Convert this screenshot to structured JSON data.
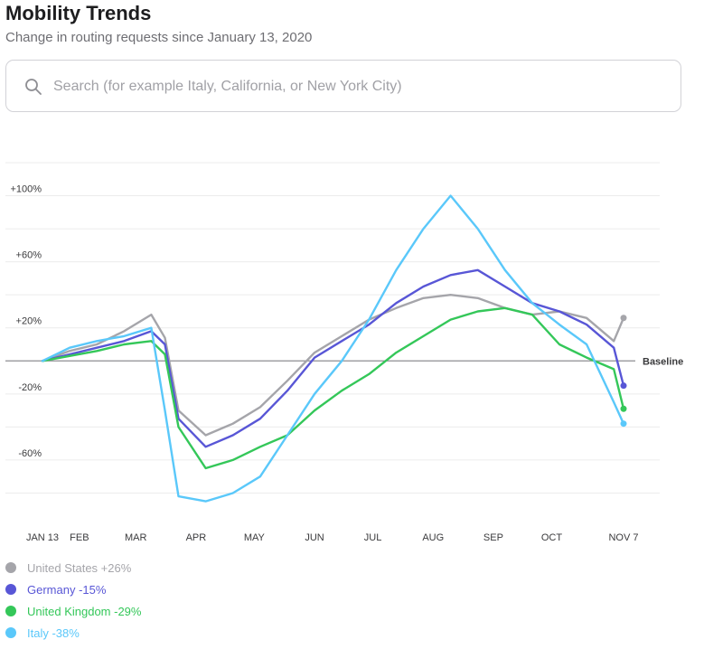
{
  "header": {
    "title": "Mobility Trends",
    "subtitle": "Change in routing requests since January 13, 2020"
  },
  "search": {
    "placeholder": "Search (for example Italy, California, or New York City)",
    "value": "",
    "icon": "search-icon"
  },
  "chart_data": {
    "type": "line",
    "title": "",
    "xlabel": "",
    "ylabel": "",
    "baseline_label": "Baseline",
    "x_ticks": [
      "JAN 13",
      "FEB",
      "MAR",
      "APR",
      "MAY",
      "JUN",
      "JUL",
      "AUG",
      "SEP",
      "OCT",
      "NOV 7"
    ],
    "y_ticks": [
      "+100%",
      "+60%",
      "+20%",
      "-20%",
      "-60%"
    ],
    "y_tick_values": [
      100,
      60,
      20,
      -20,
      -60
    ],
    "ylim": [
      -100,
      120
    ],
    "grid": true,
    "x_dates": [
      "2020-01-13",
      "2020-01-27",
      "2020-02-10",
      "2020-02-24",
      "2020-03-09",
      "2020-03-16",
      "2020-03-23",
      "2020-04-06",
      "2020-04-20",
      "2020-05-04",
      "2020-05-18",
      "2020-06-01",
      "2020-06-15",
      "2020-06-29",
      "2020-07-13",
      "2020-07-27",
      "2020-08-10",
      "2020-08-24",
      "2020-09-07",
      "2020-09-21",
      "2020-10-05",
      "2020-10-19",
      "2020-11-02",
      "2020-11-07"
    ],
    "series": [
      {
        "name": "United States",
        "change_label": "+26%",
        "color": "#a5a5aa",
        "values": [
          0,
          6,
          10,
          18,
          28,
          14,
          -30,
          -45,
          -38,
          -28,
          -12,
          5,
          15,
          25,
          32,
          38,
          40,
          38,
          32,
          28,
          30,
          26,
          12,
          26
        ]
      },
      {
        "name": "Germany",
        "change_label": "-15%",
        "color": "#5856d6",
        "values": [
          0,
          4,
          8,
          12,
          18,
          10,
          -35,
          -52,
          -45,
          -35,
          -18,
          2,
          12,
          22,
          35,
          45,
          52,
          55,
          45,
          35,
          30,
          22,
          8,
          -15
        ]
      },
      {
        "name": "United Kingdom",
        "change_label": "-29%",
        "color": "#34c759",
        "values": [
          0,
          3,
          6,
          10,
          12,
          4,
          -40,
          -65,
          -60,
          -52,
          -45,
          -30,
          -18,
          -8,
          5,
          15,
          25,
          30,
          32,
          28,
          10,
          2,
          -5,
          -29
        ]
      },
      {
        "name": "Italy",
        "change_label": "-38%",
        "color": "#5ac8fa",
        "values": [
          0,
          8,
          12,
          15,
          20,
          -30,
          -82,
          -85,
          -80,
          -70,
          -45,
          -20,
          0,
          25,
          55,
          80,
          100,
          80,
          55,
          35,
          22,
          10,
          -25,
          -38
        ]
      }
    ]
  },
  "legend": {
    "items": [
      {
        "label": "United States +26%",
        "color": "#a5a5aa"
      },
      {
        "label": "Germany -15%",
        "color": "#5856d6"
      },
      {
        "label": "United Kingdom -29%",
        "color": "#34c759"
      },
      {
        "label": "Italy -38%",
        "color": "#5ac8fa"
      }
    ]
  }
}
